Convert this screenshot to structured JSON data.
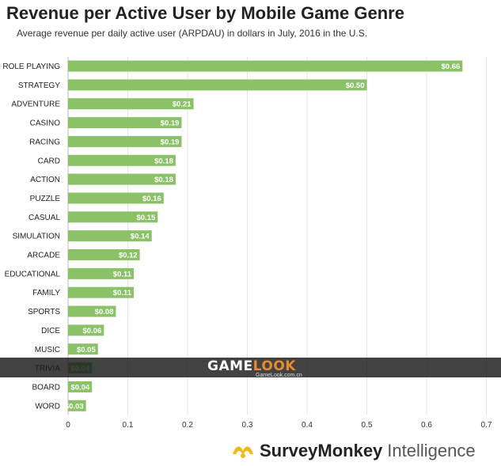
{
  "chart_data": {
    "type": "bar",
    "orientation": "horizontal",
    "title": "Revenue per Active User by Mobile Game Genre",
    "subtitle": "Average revenue per daily active user (ARPDAU) in dollars in July, 2016 in the U.S.",
    "categories": [
      "ROLE PLAYING",
      "STRATEGY",
      "ADVENTURE",
      "CASINO",
      "RACING",
      "CARD",
      "ACTION",
      "PUZZLE",
      "CASUAL",
      "SIMULATION",
      "ARCADE",
      "EDUCATIONAL",
      "FAMILY",
      "SPORTS",
      "DICE",
      "MUSIC",
      "TRIVIA",
      "BOARD",
      "WORD"
    ],
    "values": [
      0.66,
      0.5,
      0.21,
      0.19,
      0.19,
      0.18,
      0.18,
      0.16,
      0.15,
      0.14,
      0.12,
      0.11,
      0.11,
      0.08,
      0.06,
      0.05,
      0.04,
      0.04,
      0.03
    ],
    "data_labels": [
      "$0.66",
      "$0.50",
      "$0.21",
      "$0.19",
      "$0.19",
      "$0.18",
      "$0.18",
      "$0.16",
      "$0.15",
      "$0.14",
      "$0.12",
      "$0.11",
      "$0.11",
      "$0.08",
      "$0.06",
      "$0.05",
      "$0.04",
      "$0.04",
      "$0.03"
    ],
    "x_ticks": [
      "0",
      "0.1",
      "0.2",
      "0.3",
      "0.4",
      "0.5",
      "0.6",
      "0.7"
    ],
    "x_tick_values": [
      0,
      0.1,
      0.2,
      0.3,
      0.4,
      0.5,
      0.6,
      0.7
    ],
    "xlim": [
      0,
      0.7
    ],
    "grid": "vertical",
    "bar_color": "#8cc267",
    "label_color": "#ffffff"
  },
  "watermark": {
    "brand_part1": "GAME",
    "brand_part2": "LOOK",
    "url": "GameLook.com.cn"
  },
  "footer": {
    "brand": "SurveyMonkey",
    "brand_suffix": "Intelligence",
    "logo_color": "#f0b81b"
  }
}
